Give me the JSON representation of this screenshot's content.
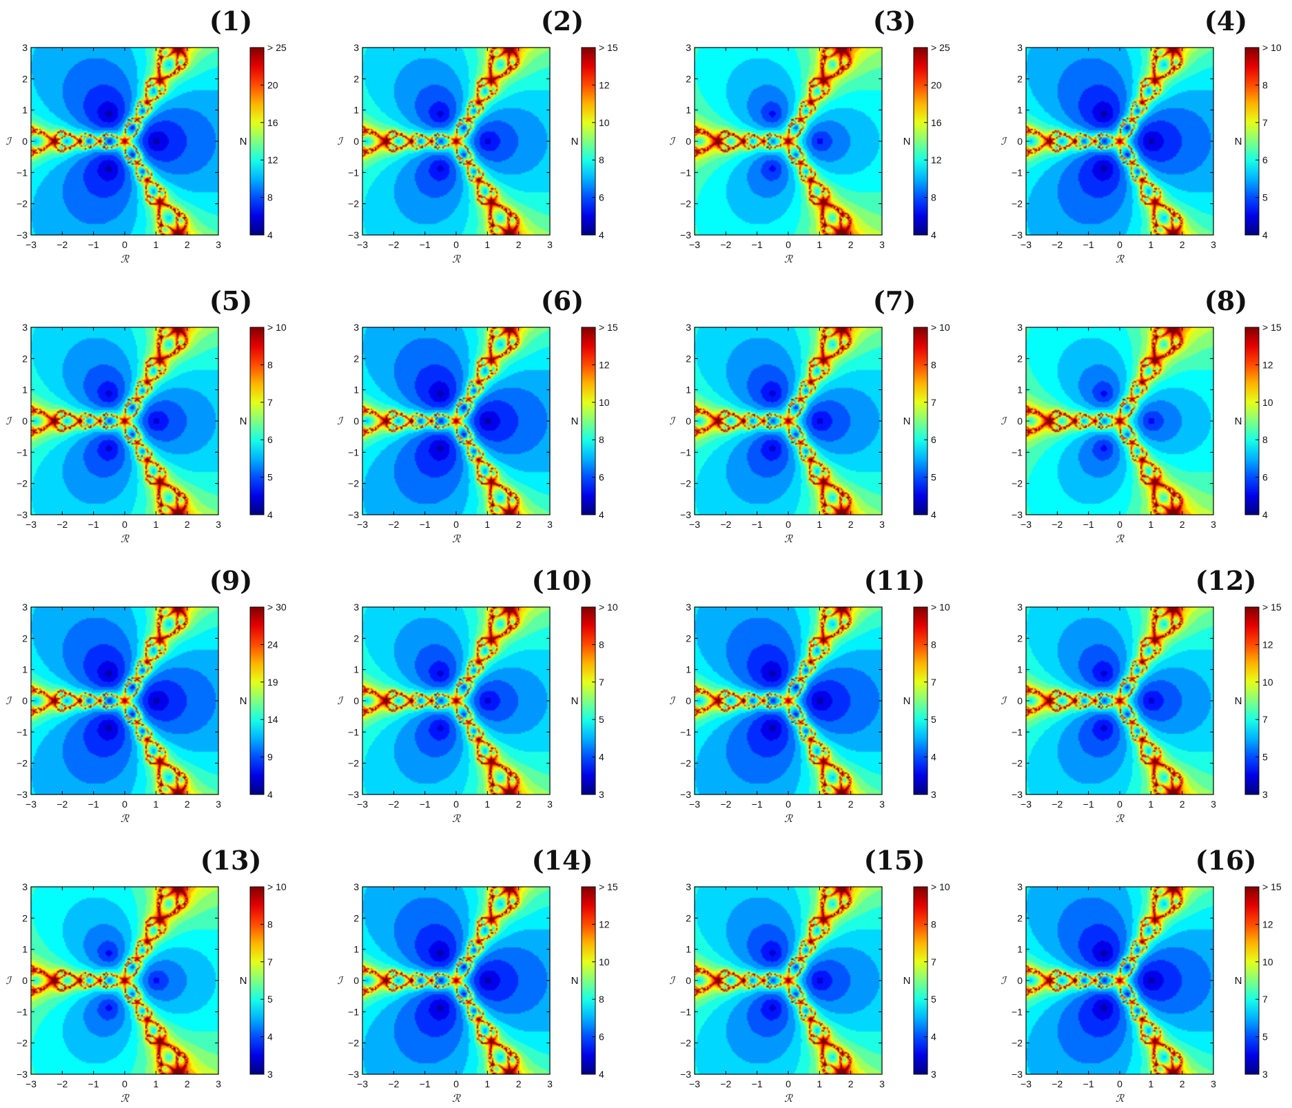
{
  "figure": {
    "panels": [
      {
        "title": "(1)",
        "colorbar": {
          "min": 4,
          "ticks": [
            "4",
            "8",
            "12",
            "16",
            "20",
            "> 25"
          ],
          "label": "N"
        }
      },
      {
        "title": "(2)",
        "colorbar": {
          "min": 4,
          "ticks": [
            "4",
            "6",
            "8",
            "10",
            "12",
            "> 15"
          ],
          "label": "N"
        }
      },
      {
        "title": "(3)",
        "colorbar": {
          "min": 4,
          "ticks": [
            "4",
            "8",
            "12",
            "16",
            "20",
            "> 25"
          ],
          "label": "N"
        }
      },
      {
        "title": "(4)",
        "colorbar": {
          "min": 4,
          "ticks": [
            "4",
            "5",
            "6",
            "7",
            "8",
            "> 10"
          ],
          "label": "N"
        }
      },
      {
        "title": "(5)",
        "colorbar": {
          "min": 4,
          "ticks": [
            "4",
            "5",
            "6",
            "7",
            "8",
            "> 10"
          ],
          "label": "N"
        }
      },
      {
        "title": "(6)",
        "colorbar": {
          "min": 4,
          "ticks": [
            "4",
            "6",
            "8",
            "10",
            "12",
            "> 15"
          ],
          "label": "N"
        }
      },
      {
        "title": "(7)",
        "colorbar": {
          "min": 4,
          "ticks": [
            "4",
            "5",
            "6",
            "7",
            "8",
            "> 10"
          ],
          "label": "N"
        }
      },
      {
        "title": "(8)",
        "colorbar": {
          "min": 4,
          "ticks": [
            "4",
            "6",
            "8",
            "10",
            "12",
            "> 15"
          ],
          "label": "N"
        }
      },
      {
        "title": "(9)",
        "colorbar": {
          "min": 4,
          "ticks": [
            "4",
            "9",
            "14",
            "19",
            "24",
            "> 30"
          ],
          "label": "N"
        }
      },
      {
        "title": "(10)",
        "colorbar": {
          "min": 3,
          "ticks": [
            "3",
            "4",
            "5",
            "7",
            "8",
            "> 10"
          ],
          "label": "N"
        }
      },
      {
        "title": "(11)",
        "colorbar": {
          "min": 3,
          "ticks": [
            "3",
            "4",
            "5",
            "7",
            "8",
            "> 10"
          ],
          "label": "N"
        }
      },
      {
        "title": "(12)",
        "colorbar": {
          "min": 3,
          "ticks": [
            "3",
            "5",
            "7",
            "10",
            "12",
            "> 15"
          ],
          "label": "N"
        }
      },
      {
        "title": "(13)",
        "colorbar": {
          "min": 3,
          "ticks": [
            "3",
            "4",
            "5",
            "7",
            "8",
            "> 10"
          ],
          "label": "N"
        }
      },
      {
        "title": "(14)",
        "colorbar": {
          "min": 4,
          "ticks": [
            "4",
            "6",
            "8",
            "10",
            "12",
            "> 15"
          ],
          "label": "N"
        }
      },
      {
        "title": "(15)",
        "colorbar": {
          "min": 3,
          "ticks": [
            "3",
            "4",
            "5",
            "7",
            "8",
            "> 10"
          ],
          "label": "N"
        }
      },
      {
        "title": "(16)",
        "colorbar": {
          "min": 3,
          "ticks": [
            "3",
            "5",
            "7",
            "10",
            "12",
            "> 15"
          ],
          "label": "N"
        }
      }
    ]
  },
  "chart_data": {
    "type": "heatmap",
    "xlabel": "ℛ",
    "ylabel": "ℐ",
    "xlim": [
      -3,
      3
    ],
    "ylim": [
      -3,
      3
    ],
    "x_ticks": [
      "−3",
      "−2",
      "−1",
      "0",
      "1",
      "2",
      "3"
    ],
    "y_ticks": [
      "−3",
      "−2",
      "−1",
      "0",
      "1",
      "2",
      "3"
    ],
    "colormap": "jet",
    "colors": {
      "low": "#00008f",
      "mid": "#00ffff",
      "high": "#800000",
      "nonconverged": "#ffffff"
    },
    "roots": [
      [
        1,
        0
      ],
      [
        -0.5,
        0.866
      ],
      [
        -0.5,
        -0.866
      ]
    ],
    "panel_count": 16
  }
}
